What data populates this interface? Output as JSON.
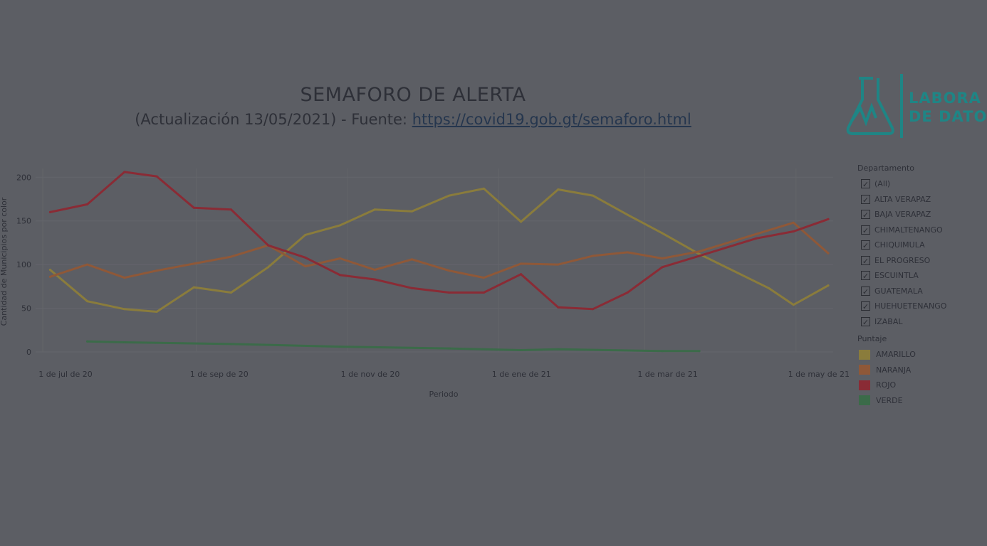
{
  "title": "SEMAFORO DE ALERTA",
  "subtitle_prefix": "(Actualización 13/05/2021) - Fuente: ",
  "subtitle_link": "https://covid19.gob.gt/semaforo.html",
  "logo": {
    "line1": "LABORA",
    "line2": "DE DATO",
    "color": "#1f8585"
  },
  "legend": {
    "dept_header": "Departamento",
    "departments": [
      "(All)",
      "ALTA VERAPAZ",
      "BAJA VERAPAZ",
      "CHIMALTENANGO",
      "CHIQUIMULA",
      "EL PROGRESO",
      "ESCUINTLA",
      "GUATEMALA",
      "HUEHUETENANGO",
      "IZABAL"
    ],
    "score_header": "Puntaje",
    "scores": [
      {
        "label": "AMARILLO",
        "color": "#8a7c3c"
      },
      {
        "label": "NARANJA",
        "color": "#8f5838"
      },
      {
        "label": "ROJO",
        "color": "#8a2b35"
      },
      {
        "label": "VERDE",
        "color": "#3b6b49"
      }
    ]
  },
  "chart_data": {
    "type": "line",
    "title": "SEMAFORO DE ALERTA",
    "xlabel": "Periodo",
    "ylabel": "Cantidad de Municipios por color",
    "ylim": [
      0,
      210
    ],
    "xlim": [
      "2020-07-01",
      "2021-05-16"
    ],
    "yticks": [
      0,
      50,
      100,
      150,
      200
    ],
    "xticks": [
      {
        "date": "2020-07-01",
        "label": "1 de jul de 20"
      },
      {
        "date": "2020-09-01",
        "label": "1 de sep de 20"
      },
      {
        "date": "2020-11-01",
        "label": "1 de nov de 20"
      },
      {
        "date": "2021-01-01",
        "label": "1 de ene de 21"
      },
      {
        "date": "2021-03-01",
        "label": "1 de mar de 21"
      },
      {
        "date": "2021-05-01",
        "label": "1 de may de 21"
      }
    ],
    "grid": true,
    "legend_position": "right",
    "series": [
      {
        "name": "AMARILLO",
        "color": "#8a7c3c",
        "x": [
          "2020-07-04",
          "2020-07-19",
          "2020-08-03",
          "2020-08-16",
          "2020-08-31",
          "2020-09-15",
          "2020-09-30",
          "2020-10-15",
          "2020-10-29",
          "2020-11-12",
          "2020-11-27",
          "2020-12-12",
          "2020-12-26",
          "2021-01-10",
          "2021-01-25",
          "2021-02-08",
          "2021-02-22",
          "2021-03-08",
          "2021-03-23",
          "2021-04-20",
          "2021-04-30",
          "2021-05-14"
        ],
        "values": [
          94,
          58,
          49,
          46,
          74,
          68,
          97,
          134,
          145,
          163,
          161,
          179,
          187,
          149,
          186,
          179,
          157,
          136,
          112,
          73,
          54,
          76
        ]
      },
      {
        "name": "NARANJA",
        "color": "#8f5838",
        "x": [
          "2020-07-04",
          "2020-07-19",
          "2020-08-03",
          "2020-08-16",
          "2020-08-31",
          "2020-09-15",
          "2020-09-30",
          "2020-10-15",
          "2020-10-29",
          "2020-11-12",
          "2020-11-27",
          "2020-12-12",
          "2020-12-26",
          "2021-01-10",
          "2021-01-25",
          "2021-02-08",
          "2021-02-22",
          "2021-03-08",
          "2021-03-23",
          "2021-04-30",
          "2021-05-14"
        ],
        "values": [
          86,
          100,
          85,
          93,
          101,
          109,
          122,
          98,
          107,
          94,
          106,
          93,
          85,
          101,
          100,
          110,
          114,
          107,
          115,
          148,
          113
        ]
      },
      {
        "name": "ROJO",
        "color": "#8a2b35",
        "x": [
          "2020-07-04",
          "2020-07-19",
          "2020-08-03",
          "2020-08-16",
          "2020-08-31",
          "2020-09-15",
          "2020-09-30",
          "2020-10-15",
          "2020-10-29",
          "2020-11-12",
          "2020-11-27",
          "2020-12-12",
          "2020-12-26",
          "2021-01-10",
          "2021-01-25",
          "2021-02-08",
          "2021-02-22",
          "2021-03-08",
          "2021-03-23",
          "2021-04-15",
          "2021-04-30",
          "2021-05-14"
        ],
        "values": [
          160,
          169,
          206,
          201,
          165,
          163,
          122,
          108,
          88,
          83,
          73,
          68,
          68,
          89,
          51,
          49,
          68,
          97,
          110,
          130,
          138,
          152
        ]
      },
      {
        "name": "VERDE",
        "color": "#3b6b49",
        "x": [
          "2020-07-19",
          "2020-08-03",
          "2020-09-15",
          "2020-10-29",
          "2020-12-12",
          "2021-01-10",
          "2021-01-25",
          "2021-03-08",
          "2021-03-23"
        ],
        "values": [
          12,
          11,
          9,
          6,
          4,
          2,
          3,
          1,
          1
        ]
      }
    ]
  }
}
